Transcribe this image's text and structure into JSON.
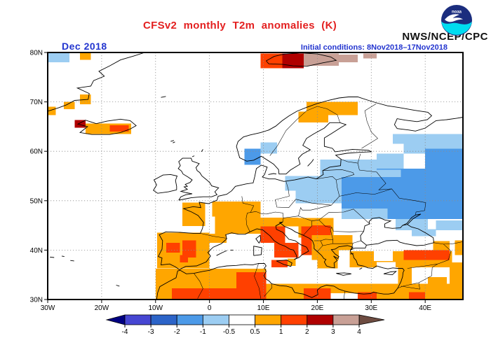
{
  "header": {
    "title": "CFSv2 monthly T2m anomalies (K)",
    "agency": "NWS/NCEP/CPC",
    "date_label": "Dec 2018",
    "initial_conditions": "Initial conditions: 8Nov2018–17Nov2018",
    "title_color": "#e32020",
    "label_color": "#2335cf",
    "logo": {
      "name": "noaa-logo",
      "dark_blue": "#1b2d7e",
      "cyan": "#00dcf0",
      "text": "noaa"
    }
  },
  "chart_data": {
    "type": "heatmap",
    "title": "CFSv2 monthly T2m anomalies (K)",
    "subtitle": "Dec 2018",
    "annotation": "Initial conditions: 8Nov2018–17Nov2018",
    "units": "K",
    "projection": {
      "lon_range": [
        -30,
        47
      ],
      "lat_range": [
        30,
        80
      ]
    },
    "x_ticks": [
      {
        "label": "30W",
        "lon": -30
      },
      {
        "label": "20W",
        "lon": -20
      },
      {
        "label": "10W",
        "lon": -10
      },
      {
        "label": "0",
        "lon": 0
      },
      {
        "label": "10E",
        "lon": 10
      },
      {
        "label": "20E",
        "lon": 20
      },
      {
        "label": "30E",
        "lon": 30
      },
      {
        "label": "40E",
        "lon": 40
      }
    ],
    "y_ticks": [
      {
        "label": "80N",
        "lat": 80
      },
      {
        "label": "70N",
        "lat": 70
      },
      {
        "label": "60N",
        "lat": 60
      },
      {
        "label": "50N",
        "lat": 50
      },
      {
        "label": "40N",
        "lat": 40
      },
      {
        "label": "30N",
        "lat": 30
      }
    ],
    "grid": {
      "lons": [
        -20,
        -10,
        0,
        10,
        20,
        30,
        40
      ],
      "lats": [
        40,
        50,
        60,
        70
      ],
      "style": "dotted"
    },
    "colorbar": {
      "tick_labels": [
        "-4",
        "-3",
        "-2",
        "-1",
        "-0.5",
        "0.5",
        "1",
        "2",
        "3",
        "4"
      ],
      "segment_colors": [
        "#4646d2",
        "#2c64c8",
        "#4c9ae8",
        "#9ccdf2",
        "#ffffff",
        "#ffa600",
        "#ff4000",
        "#b00000",
        "#c8a096"
      ],
      "arrow_left_color": "#000082",
      "arrow_right_color": "#6e4c41"
    },
    "levels": {
      "m2": "#4c9ae8",
      "m1": "#9ccdf2",
      "W": "#ffffff",
      "O": "#ffa600",
      "R": "#ff4000",
      "D": "#b00000",
      "T": "#c8a096"
    },
    "level_meaning": {
      "m2": "-2 to -1 K",
      "m1": "-1 to -0.5 K",
      "W": "-0.5 to 0.5 K",
      "O": "0.5 to 1 K",
      "R": "1 to 2 K",
      "D": "2 to 3 K",
      "T": "3 to 4 K"
    },
    "cells": [
      [
        -30,
        78,
        -26,
        80,
        "m1"
      ],
      [
        9.5,
        59.5,
        12.5,
        61.8,
        "m1"
      ],
      [
        6.5,
        57.3,
        9.5,
        60.5,
        "m2"
      ],
      [
        34,
        61.5,
        47,
        63.5,
        "m1"
      ],
      [
        36,
        59.5,
        47,
        61.5,
        "m1"
      ],
      [
        31,
        56.5,
        36,
        59.5,
        "m1"
      ],
      [
        40,
        56.5,
        47,
        60.5,
        "m2"
      ],
      [
        24.5,
        52,
        47,
        56.5,
        "m2"
      ],
      [
        20.5,
        54.8,
        31,
        58.3,
        "m1"
      ],
      [
        31,
        54.8,
        35.5,
        56.3,
        "m1"
      ],
      [
        14,
        52,
        24.5,
        55,
        "m1"
      ],
      [
        16,
        49.5,
        24.5,
        52,
        "m1"
      ],
      [
        24.5,
        47.5,
        47,
        52,
        "m2"
      ],
      [
        24.5,
        46.3,
        33,
        48.4,
        "m1"
      ],
      [
        33,
        46.3,
        47,
        47.5,
        "m2"
      ],
      [
        34.5,
        44,
        40.5,
        46.3,
        "m1"
      ],
      [
        37.5,
        42.8,
        42,
        44.2,
        "m1"
      ],
      [
        42,
        44,
        47,
        46,
        "m1"
      ],
      [
        -24,
        78.5,
        -22,
        80,
        "O"
      ],
      [
        -24,
        69.5,
        -22,
        71.5,
        "O"
      ],
      [
        -27,
        68.5,
        -25,
        70,
        "O"
      ],
      [
        -30,
        67.3,
        -28.5,
        69,
        "O"
      ],
      [
        -23,
        63.5,
        -14.5,
        65.6,
        "O"
      ],
      [
        -18.5,
        64,
        -15,
        65.3,
        "R"
      ],
      [
        -25,
        64.8,
        -23,
        66.3,
        "D"
      ],
      [
        9.5,
        76.8,
        13.5,
        79.8,
        "R"
      ],
      [
        13.5,
        76.8,
        17.5,
        79.8,
        "D"
      ],
      [
        17.5,
        77.3,
        24,
        79.8,
        "T"
      ],
      [
        24,
        78,
        27.5,
        79.6,
        "T"
      ],
      [
        28.5,
        78.8,
        31,
        79.8,
        "T"
      ],
      [
        18,
        67.3,
        27.5,
        70,
        "O"
      ],
      [
        16.5,
        65.8,
        22,
        68,
        "O"
      ],
      [
        -5,
        44.9,
        -0.8,
        49.6,
        "O"
      ],
      [
        0.5,
        46.8,
        9.5,
        49.8,
        "O"
      ],
      [
        1,
        43.3,
        9.5,
        46.8,
        "O"
      ],
      [
        9.5,
        44.8,
        16.5,
        46.6,
        "O"
      ],
      [
        -9.7,
        36.3,
        0,
        43.5,
        "O"
      ],
      [
        0,
        41.5,
        3.2,
        43.3,
        "O"
      ],
      [
        -8,
        39.5,
        -5.5,
        41.5,
        "R"
      ],
      [
        -5,
        38.5,
        -2.5,
        42,
        "R"
      ],
      [
        -5.5,
        37.5,
        -4,
        39,
        "R"
      ],
      [
        9.5,
        41.5,
        14,
        44.8,
        "R"
      ],
      [
        12,
        38.5,
        16.5,
        41.5,
        "R"
      ],
      [
        11.5,
        36.5,
        14.5,
        38,
        "R"
      ],
      [
        14.5,
        36.8,
        16,
        38.3,
        "O"
      ],
      [
        16.5,
        42.5,
        23,
        46.5,
        "O"
      ],
      [
        17,
        39,
        20,
        44.8,
        "R"
      ],
      [
        19,
        43,
        22.5,
        45,
        "R"
      ],
      [
        19,
        40,
        26.5,
        43,
        "O"
      ],
      [
        19,
        38,
        24,
        40,
        "O"
      ],
      [
        20,
        36.3,
        23.8,
        38.3,
        "O"
      ],
      [
        26,
        36.5,
        45,
        39.8,
        "O"
      ],
      [
        30.5,
        37.8,
        34,
        39.8,
        "W"
      ],
      [
        31,
        36.5,
        34.5,
        37.6,
        "W"
      ],
      [
        36,
        38,
        44.5,
        40,
        "R"
      ],
      [
        41.5,
        40,
        44.5,
        41.8,
        "O"
      ],
      [
        45.5,
        39,
        47,
        42,
        "O"
      ],
      [
        35,
        32.5,
        37.5,
        36.5,
        "O"
      ],
      [
        -10,
        30,
        10.5,
        36.2,
        "O"
      ],
      [
        -7,
        30,
        8,
        32.3,
        "R"
      ],
      [
        5,
        30,
        10.5,
        35.5,
        "R"
      ],
      [
        10.5,
        30,
        47,
        33.2,
        "O"
      ],
      [
        17.5,
        30,
        22.5,
        32.3,
        "R"
      ],
      [
        22.5,
        30,
        27.5,
        31.3,
        "W"
      ],
      [
        27.5,
        30,
        31,
        31.5,
        "R"
      ],
      [
        37,
        30,
        40,
        31.5,
        "R"
      ],
      [
        40.5,
        33,
        44,
        34.5,
        "O"
      ],
      [
        44.5,
        33,
        47,
        37.5,
        "O"
      ]
    ]
  }
}
